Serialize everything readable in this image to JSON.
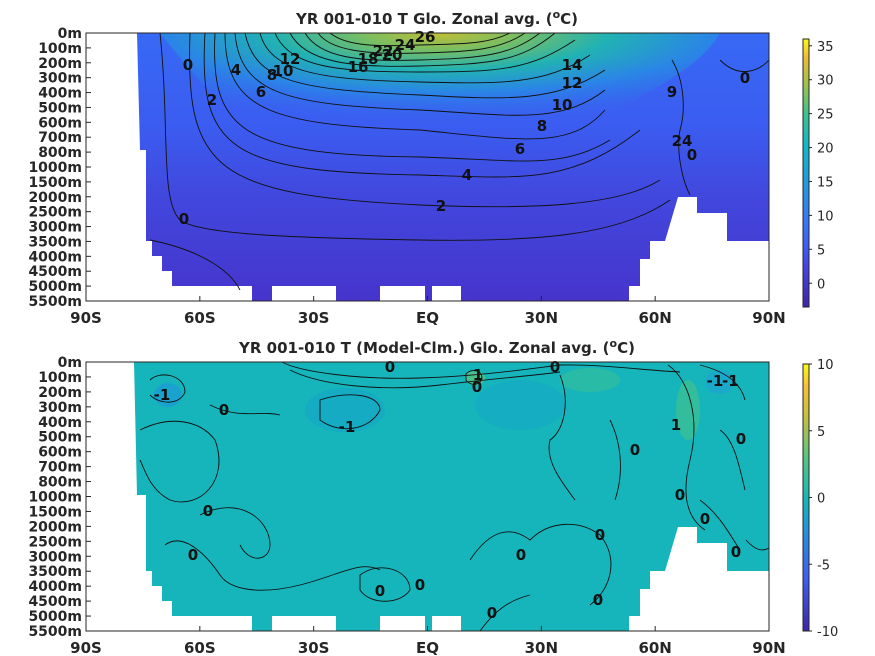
{
  "chart_data": [
    {
      "type": "heatmap",
      "title": "YR 001-010 T Glo. Zonal avg. (oC)",
      "title_main": "YR 001-010 T Glo. Zonal avg. (",
      "title_sup": "o",
      "title_end": "C)",
      "x_ticks": [
        "90S",
        "60S",
        "30S",
        "EQ",
        "30N",
        "60N",
        "90N"
      ],
      "y_ticks": [
        "0m",
        "100m",
        "200m",
        "300m",
        "400m",
        "500m",
        "600m",
        "700m",
        "800m",
        "1000m",
        "1500m",
        "2000m",
        "2500m",
        "3000m",
        "3500m",
        "4000m",
        "4500m",
        "5000m",
        "5500m"
      ],
      "colorbar_ticks": [
        "35",
        "30",
        "25",
        "20",
        "15",
        "10",
        "5",
        "0"
      ],
      "colorbar_range": [
        -3.5,
        36
      ],
      "contour_labels": [
        "26",
        "24",
        "22",
        "20",
        "18",
        "16",
        "14",
        "12",
        "10",
        "8",
        "6",
        "4",
        "2",
        "0",
        "0",
        "0",
        "9",
        "24",
        "0"
      ],
      "colors": {
        "low": "#3e26a8",
        "mid": "#2e8ee0",
        "high": "#f9fb15"
      }
    },
    {
      "type": "heatmap",
      "title": "YR 001-010 T (Model-Clm.) Glo. Zonal avg. (oC)",
      "title_main": "YR 001-010 T (Model-Clm.) Glo. Zonal avg. (",
      "title_sup": "o",
      "title_end": "C)",
      "x_ticks": [
        "90S",
        "60S",
        "30S",
        "EQ",
        "30N",
        "60N",
        "90N"
      ],
      "y_ticks": [
        "0m",
        "100m",
        "200m",
        "300m",
        "400m",
        "500m",
        "600m",
        "700m",
        "800m",
        "1000m",
        "1500m",
        "2000m",
        "2500m",
        "3000m",
        "3500m",
        "4000m",
        "4500m",
        "5000m",
        "5500m"
      ],
      "colorbar_ticks": [
        "10",
        "5",
        "0",
        "-5",
        "-10"
      ],
      "colorbar_range": [
        -10,
        10
      ],
      "contour_labels": [
        "0",
        "0",
        "-1",
        "1",
        "0",
        "-1",
        "0",
        "-1",
        "0",
        "0",
        "1",
        "0",
        "0",
        "0",
        "0",
        "0",
        "0",
        "0",
        "0",
        "0",
        "0",
        "0",
        "-1"
      ],
      "colors": {
        "low": "#3e26a8",
        "mid": "#13beb8",
        "high": "#f9fb15"
      }
    }
  ]
}
